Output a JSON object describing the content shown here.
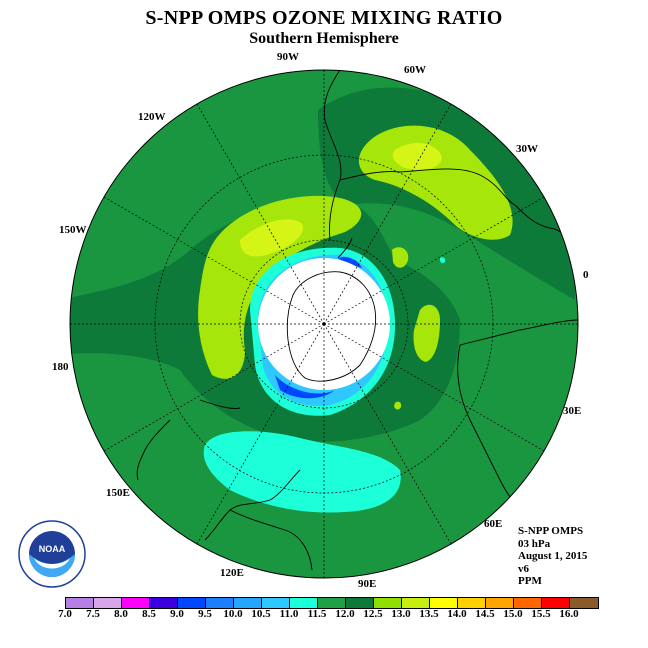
{
  "title": "S-NPP OMPS OZONE MIXING RATIO",
  "subtitle": "Southern Hemisphere",
  "longitude_labels": [
    "90W",
    "60W",
    "30W",
    "0",
    "30E",
    "60E",
    "90E",
    "120E",
    "150E",
    "180",
    "150W",
    "120W"
  ],
  "info": {
    "instrument": "S-NPP OMPS",
    "level": "03 hPa",
    "date": "August 1, 2015",
    "version": "v6",
    "units": "PPM"
  },
  "logo": {
    "text": "NOAA",
    "ring_text": "NATIONAL OCEANIC AND ATMOSPHERIC ADMINISTRATION · U.S. DEPARTMENT OF COMMERCE"
  },
  "colorbar": {
    "ticks": [
      "7.0",
      "7.5",
      "8.0",
      "8.5",
      "9.0",
      "9.5",
      "10.0",
      "10.5",
      "11.0",
      "11.5",
      "12.0",
      "12.5",
      "13.0",
      "13.5",
      "14.0",
      "14.5",
      "15.0",
      "15.5",
      "16.0"
    ],
    "colors": [
      "#b57fe6",
      "#d7a6e8",
      "#ff00ff",
      "#3a00e0",
      "#0047ff",
      "#1c7fff",
      "#24a6ff",
      "#2ec8ff",
      "#1cffd9",
      "#1ea047",
      "#0e7a3a",
      "#8fe000",
      "#c6ee11",
      "#ffff00",
      "#ffd000",
      "#ffa500",
      "#ff6600",
      "#ff0000",
      "#8b5a2b"
    ]
  },
  "colors": {
    "background_field": "#1a9641",
    "dark_band": "#0e7a3a",
    "light_green": "#a6e60a",
    "yellow_green": "#d4f516",
    "cyan": "#1cffd9",
    "light_blue": "#2ec8ff",
    "blue": "#0047ff",
    "polar_night": "#ffffff"
  }
}
